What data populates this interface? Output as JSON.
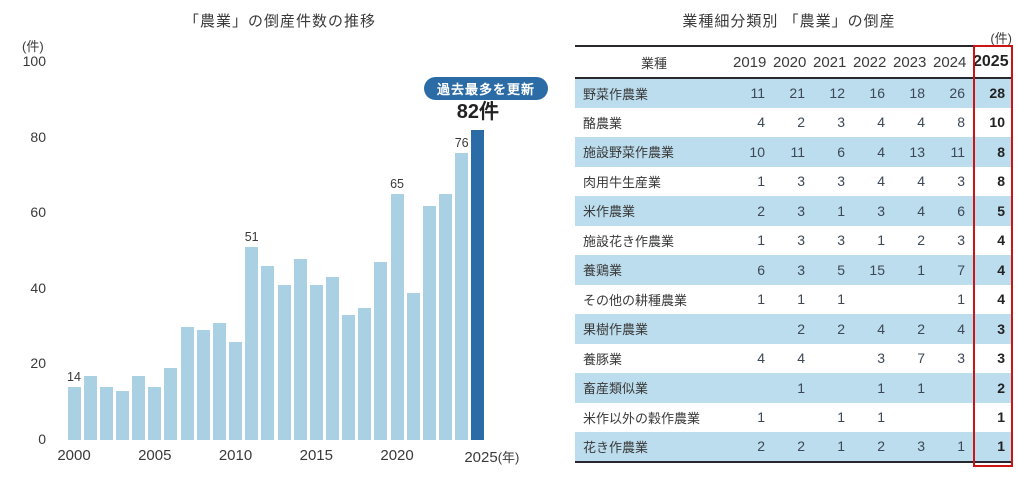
{
  "chart_data": {
    "type": "bar",
    "title": "「農業」の倒産件数の推移",
    "ylabel": "(件)",
    "x_suffix": "(年)",
    "x": [
      2000,
      2001,
      2002,
      2003,
      2004,
      2005,
      2006,
      2007,
      2008,
      2009,
      2010,
      2011,
      2012,
      2013,
      2014,
      2015,
      2016,
      2017,
      2018,
      2019,
      2020,
      2021,
      2022,
      2023,
      2024,
      2025
    ],
    "values": [
      14,
      17,
      14,
      13,
      17,
      14,
      19,
      30,
      29,
      31,
      26,
      51,
      46,
      41,
      48,
      41,
      43,
      33,
      35,
      47,
      65,
      39,
      62,
      65,
      76,
      82
    ],
    "ylim": [
      0,
      100
    ],
    "yticks": [
      0,
      20,
      40,
      60,
      80,
      100
    ],
    "xticks": [
      2000,
      2005,
      2010,
      2015,
      2020,
      2025
    ],
    "bar_labels": {
      "2000": "14",
      "2011": "51",
      "2020": "65",
      "2024": "76",
      "2025": "82件"
    },
    "highlight_x": 2025,
    "annotation": "過去最多を更新",
    "bar_color": "#a9d1e3",
    "highlight_color": "#2b6ca6",
    "grid": false,
    "legend": "none"
  },
  "chart": {
    "title": "「農業」の倒産件数の推移",
    "unit_label": "(件)",
    "badge_label": "過去最多を更新"
  },
  "table": {
    "title": "業種細分類別 「農業」の倒産",
    "unit_label": "(件)",
    "columns": [
      "業種",
      "2019",
      "2020",
      "2021",
      "2022",
      "2023",
      "2024",
      "2025"
    ],
    "highlight_column": "2025",
    "highlight_color": "#cc1414",
    "stripe_color": "#bcdded",
    "rows": [
      {
        "name": "野菜作農業",
        "values": [
          "11",
          "21",
          "12",
          "16",
          "18",
          "26",
          "28"
        ]
      },
      {
        "name": "酪農業",
        "values": [
          "4",
          "2",
          "3",
          "4",
          "4",
          "8",
          "10"
        ]
      },
      {
        "name": "施設野菜作農業",
        "values": [
          "10",
          "11",
          "6",
          "4",
          "13",
          "11",
          "8"
        ]
      },
      {
        "name": "肉用牛生産業",
        "values": [
          "1",
          "3",
          "3",
          "4",
          "4",
          "3",
          "8"
        ]
      },
      {
        "name": "米作農業",
        "values": [
          "2",
          "3",
          "1",
          "3",
          "4",
          "6",
          "5"
        ]
      },
      {
        "name": "施設花き作農業",
        "values": [
          "1",
          "3",
          "3",
          "1",
          "2",
          "3",
          "4"
        ]
      },
      {
        "name": "養鶏業",
        "values": [
          "6",
          "3",
          "5",
          "15",
          "1",
          "7",
          "4"
        ]
      },
      {
        "name": "その他の耕種農業",
        "values": [
          "1",
          "1",
          "1",
          "",
          "",
          "1",
          "4"
        ]
      },
      {
        "name": "果樹作農業",
        "values": [
          "",
          "2",
          "2",
          "4",
          "2",
          "4",
          "3"
        ]
      },
      {
        "name": "養豚業",
        "values": [
          "4",
          "4",
          "",
          "3",
          "7",
          "3",
          "3"
        ]
      },
      {
        "name": "畜産類似業",
        "values": [
          "",
          "1",
          "",
          "1",
          "1",
          "",
          "2"
        ]
      },
      {
        "name": "米作以外の穀作農業",
        "values": [
          "1",
          "",
          "1",
          "1",
          "",
          "",
          "1"
        ]
      },
      {
        "name": "花き作農業",
        "values": [
          "2",
          "2",
          "1",
          "2",
          "3",
          "1",
          "1"
        ]
      }
    ]
  }
}
